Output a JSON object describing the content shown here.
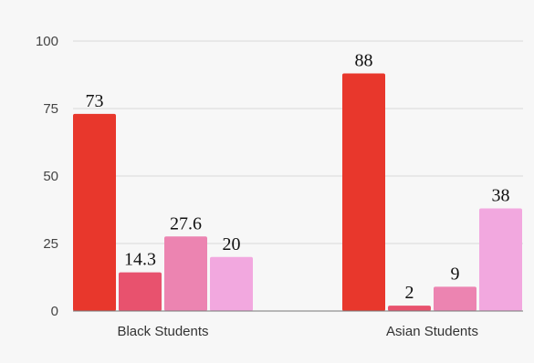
{
  "chart_data": {
    "type": "bar",
    "categories": [
      "Black Students",
      "Asian Students"
    ],
    "series": [
      {
        "values": [
          73,
          88
        ],
        "color": "#e8372c"
      },
      {
        "values": [
          14.3,
          2
        ],
        "color": "#e8526e"
      },
      {
        "values": [
          27.6,
          9
        ],
        "color": "#ec84b1"
      },
      {
        "values": [
          20,
          38
        ],
        "color": "#f2a8df"
      }
    ],
    "value_labels": [
      [
        "73",
        "88"
      ],
      [
        "14.3",
        "2"
      ],
      [
        "27.6",
        "9"
      ],
      [
        "20",
        "38"
      ]
    ],
    "y_ticks": [
      "0",
      "25",
      "50",
      "75",
      "100"
    ],
    "ylim": [
      0,
      100
    ],
    "grid": true,
    "legend": "none"
  }
}
